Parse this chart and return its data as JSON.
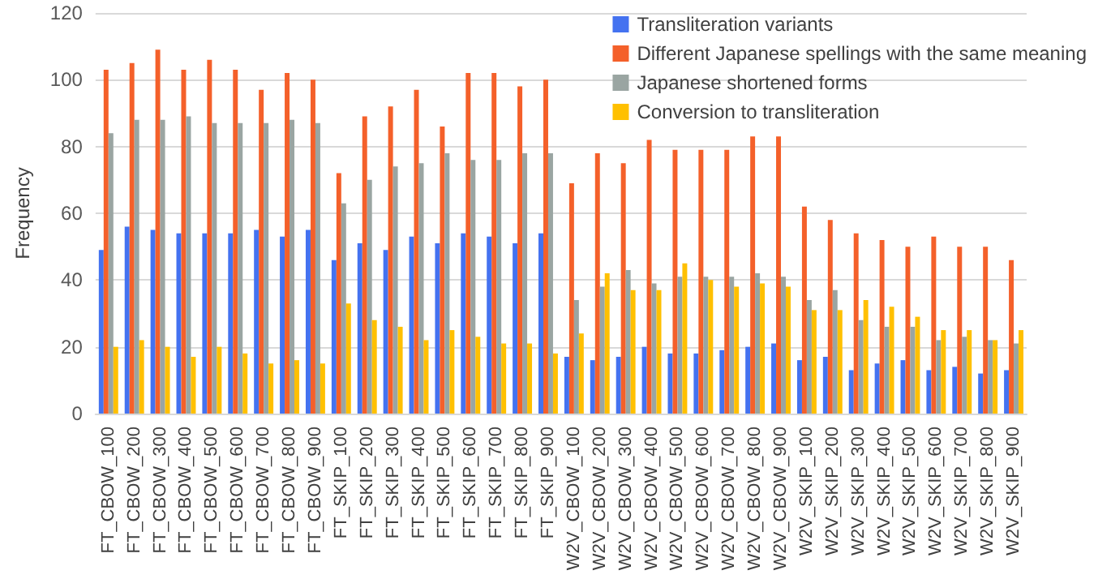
{
  "chart_data": {
    "type": "bar",
    "ylabel": "Frequency",
    "categories": [
      "FT_CBOW_100",
      "FT_CBOW_200",
      "FT_CBOW_300",
      "FT_CBOW_400",
      "FT_CBOW_500",
      "FT_CBOW_600",
      "FT_CBOW_700",
      "FT_CBOW_800",
      "FT_CBOW_900",
      "FT_SKIP_100",
      "FT_SKIP_200",
      "FT_SKIP_300",
      "FT_SKIP_400",
      "FT_SKIP_500",
      "FT_SKIP_600",
      "FT_SKIP_700",
      "FT_SKIP_800",
      "FT_SKIP_900",
      "W2V_CBOW_100",
      "W2V_CBOW_200",
      "W2V_CBOW_300",
      "W2V_CBOW_400",
      "W2V_CBOW_500",
      "W2V_CBOW_600",
      "W2V_CBOW_700",
      "W2V_CBOW_800",
      "W2V_CBOW_900",
      "W2V_SKIP_100",
      "W2V_SKIP_200",
      "W2V_SKIP_300",
      "W2V_SKIP_400",
      "W2V_SKIP_500",
      "W2V_SKIP_600",
      "W2V_SKIP_700",
      "W2V_SKIP_800",
      "W2V_SKIP_900"
    ],
    "series": [
      {
        "name": "Transliteration variants",
        "color": "#4472f0",
        "values": [
          49,
          56,
          55,
          54,
          54,
          54,
          55,
          53,
          55,
          46,
          51,
          49,
          53,
          51,
          54,
          53,
          51,
          54,
          17,
          16,
          17,
          20,
          18,
          18,
          19,
          20,
          21,
          16,
          17,
          13,
          15,
          16,
          13,
          14,
          12,
          13
        ]
      },
      {
        "name": "Different Japanese spellings with the same meaning",
        "color": "#f4602a",
        "values": [
          103,
          105,
          109,
          103,
          106,
          103,
          97,
          102,
          100,
          72,
          89,
          92,
          97,
          86,
          102,
          102,
          98,
          100,
          69,
          78,
          75,
          82,
          79,
          79,
          79,
          83,
          83,
          62,
          58,
          54,
          52,
          50,
          53,
          50,
          50,
          46
        ]
      },
      {
        "name": "Japanese shortened forms",
        "color": "#9aa5a2",
        "values": [
          84,
          88,
          88,
          89,
          87,
          87,
          87,
          88,
          87,
          63,
          70,
          74,
          75,
          78,
          76,
          76,
          78,
          78,
          34,
          38,
          43,
          39,
          41,
          41,
          41,
          42,
          41,
          34,
          37,
          28,
          26,
          26,
          22,
          23,
          22,
          21
        ]
      },
      {
        "name": "Conversion to transliteration",
        "color": "#ffc000",
        "values": [
          20,
          22,
          20,
          17,
          20,
          18,
          15,
          16,
          15,
          33,
          28,
          26,
          22,
          25,
          23,
          21,
          21,
          18,
          24,
          42,
          37,
          37,
          45,
          40,
          38,
          39,
          38,
          31,
          31,
          34,
          32,
          29,
          25,
          25,
          22,
          25
        ]
      }
    ],
    "ylim": [
      0,
      120
    ],
    "yticks": [
      0,
      20,
      40,
      60,
      80,
      100,
      120
    ],
    "grid": "y",
    "legend": "top right"
  }
}
